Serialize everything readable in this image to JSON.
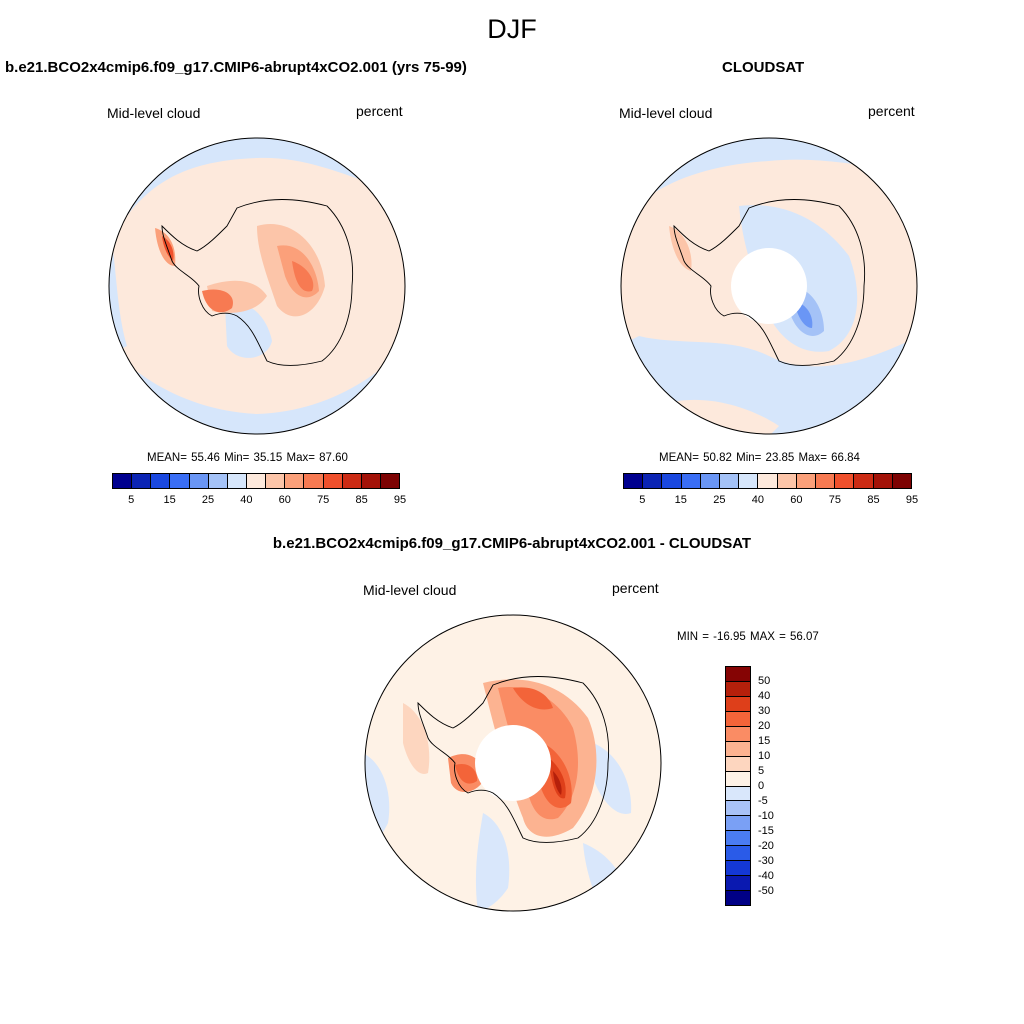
{
  "page": {
    "title": "DJF"
  },
  "panels": [
    {
      "title": "b.e21.BCO2x4cmip6.f09_g17.CMIP6-abrupt4xCO2.001 (yrs 75-99)",
      "left_label": "Mid-level cloud",
      "right_label": "percent",
      "stats": "MEAN=  55.46  Min=  35.15  Max=  87.60",
      "mean": 55.46,
      "min": 35.15,
      "max": 87.6
    },
    {
      "title": "CLOUDSAT",
      "left_label": "Mid-level cloud",
      "right_label": "percent",
      "stats": "MEAN=  50.82  Min=  23.85  Max=  66.84",
      "mean": 50.82,
      "min": 23.85,
      "max": 66.84
    },
    {
      "title": "b.e21.BCO2x4cmip6.f09_g17.CMIP6-abrupt4xCO2.001 - CLOUDSAT",
      "left_label": "Mid-level cloud",
      "right_label": "percent",
      "stats": "MIN = -16.95 MAX =  56.07",
      "min": -16.95,
      "max": 56.07
    }
  ],
  "colorbar_abs": {
    "colors": [
      "#00008f",
      "#0b24b4",
      "#1a48e0",
      "#3a6ef5",
      "#6a96f5",
      "#a4c2f7",
      "#d6e6fb",
      "#fde9dc",
      "#fcc5a9",
      "#fba07a",
      "#f77a52",
      "#f0502c",
      "#cc2b14",
      "#a31208",
      "#7d0303"
    ],
    "tick_labels": [
      "5",
      "15",
      "25",
      "40",
      "60",
      "75",
      "85",
      "95"
    ]
  },
  "colorbar_diff": {
    "colors": [
      "#000086",
      "#0a19b0",
      "#1438d6",
      "#2a5be8",
      "#4a7cf2",
      "#7aa0f5",
      "#a8c2f7",
      "#d9e7fb",
      "#fef2e6",
      "#fdd6bf",
      "#fcb391",
      "#fa8c64",
      "#f36439",
      "#de3f1a",
      "#b5200b",
      "#850404"
    ],
    "tick_labels": [
      "-50",
      "-40",
      "-30",
      "-20",
      "-15",
      "-10",
      "-5",
      "0",
      "5",
      "10",
      "15",
      "20",
      "30",
      "40",
      "50"
    ]
  },
  "colors": {
    "continent_outline": "#000000",
    "map_border": "#000000",
    "missing_data": "#ffffff"
  }
}
